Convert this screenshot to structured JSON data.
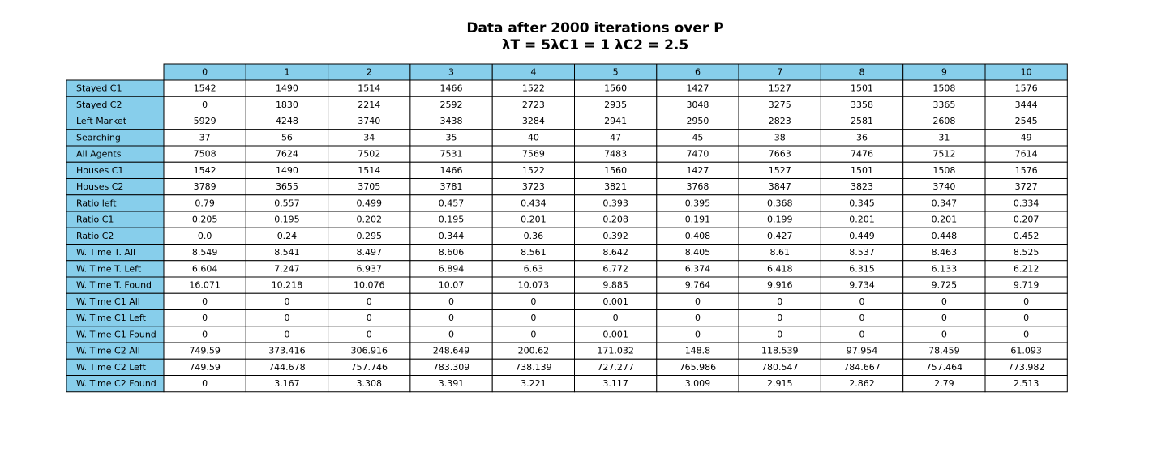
{
  "chart_data": {
    "type": "table",
    "title_line1": "Data after 2000 iterations over P",
    "title_line2": "λT = 5λC1 = 1 λC2 = 2.5",
    "header_color": "#87CEEB",
    "columns": [
      "0",
      "1",
      "2",
      "3",
      "4",
      "5",
      "6",
      "7",
      "8",
      "9",
      "10"
    ],
    "rows": [
      {
        "label": "Stayed C1",
        "values": [
          "1542",
          "1490",
          "1514",
          "1466",
          "1522",
          "1560",
          "1427",
          "1527",
          "1501",
          "1508",
          "1576"
        ]
      },
      {
        "label": "Stayed C2",
        "values": [
          "0",
          "1830",
          "2214",
          "2592",
          "2723",
          "2935",
          "3048",
          "3275",
          "3358",
          "3365",
          "3444"
        ]
      },
      {
        "label": "Left Market",
        "values": [
          "5929",
          "4248",
          "3740",
          "3438",
          "3284",
          "2941",
          "2950",
          "2823",
          "2581",
          "2608",
          "2545"
        ]
      },
      {
        "label": "Searching",
        "values": [
          "37",
          "56",
          "34",
          "35",
          "40",
          "47",
          "45",
          "38",
          "36",
          "31",
          "49"
        ]
      },
      {
        "label": "All Agents",
        "values": [
          "7508",
          "7624",
          "7502",
          "7531",
          "7569",
          "7483",
          "7470",
          "7663",
          "7476",
          "7512",
          "7614"
        ]
      },
      {
        "label": "Houses C1",
        "values": [
          "1542",
          "1490",
          "1514",
          "1466",
          "1522",
          "1560",
          "1427",
          "1527",
          "1501",
          "1508",
          "1576"
        ]
      },
      {
        "label": "Houses C2",
        "values": [
          "3789",
          "3655",
          "3705",
          "3781",
          "3723",
          "3821",
          "3768",
          "3847",
          "3823",
          "3740",
          "3727"
        ]
      },
      {
        "label": "Ratio left",
        "values": [
          "0.79",
          "0.557",
          "0.499",
          "0.457",
          "0.434",
          "0.393",
          "0.395",
          "0.368",
          "0.345",
          "0.347",
          "0.334"
        ]
      },
      {
        "label": "Ratio C1",
        "values": [
          "0.205",
          "0.195",
          "0.202",
          "0.195",
          "0.201",
          "0.208",
          "0.191",
          "0.199",
          "0.201",
          "0.201",
          "0.207"
        ]
      },
      {
        "label": "Ratio C2",
        "values": [
          "0.0",
          "0.24",
          "0.295",
          "0.344",
          "0.36",
          "0.392",
          "0.408",
          "0.427",
          "0.449",
          "0.448",
          "0.452"
        ]
      },
      {
        "label": "W. Time T. All",
        "values": [
          "8.549",
          "8.541",
          "8.497",
          "8.606",
          "8.561",
          "8.642",
          "8.405",
          "8.61",
          "8.537",
          "8.463",
          "8.525"
        ]
      },
      {
        "label": "W. Time T. Left",
        "values": [
          "6.604",
          "7.247",
          "6.937",
          "6.894",
          "6.63",
          "6.772",
          "6.374",
          "6.418",
          "6.315",
          "6.133",
          "6.212"
        ]
      },
      {
        "label": "W. Time T. Found",
        "values": [
          "16.071",
          "10.218",
          "10.076",
          "10.07",
          "10.073",
          "9.885",
          "9.764",
          "9.916",
          "9.734",
          "9.725",
          "9.719"
        ]
      },
      {
        "label": "W. Time C1 All",
        "values": [
          "0",
          "0",
          "0",
          "0",
          "0",
          "0.001",
          "0",
          "0",
          "0",
          "0",
          "0"
        ]
      },
      {
        "label": "W. Time C1 Left",
        "values": [
          "0",
          "0",
          "0",
          "0",
          "0",
          "0",
          "0",
          "0",
          "0",
          "0",
          "0"
        ]
      },
      {
        "label": "W. Time C1 Found",
        "values": [
          "0",
          "0",
          "0",
          "0",
          "0",
          "0.001",
          "0",
          "0",
          "0",
          "0",
          "0"
        ]
      },
      {
        "label": "W. Time C2 All",
        "values": [
          "749.59",
          "373.416",
          "306.916",
          "248.649",
          "200.62",
          "171.032",
          "148.8",
          "118.539",
          "97.954",
          "78.459",
          "61.093"
        ]
      },
      {
        "label": "W. Time C2 Left",
        "values": [
          "749.59",
          "744.678",
          "757.746",
          "783.309",
          "738.139",
          "727.277",
          "765.986",
          "780.547",
          "784.667",
          "757.464",
          "773.982"
        ]
      },
      {
        "label": "W. Time C2 Found",
        "values": [
          "0",
          "3.167",
          "3.308",
          "3.391",
          "3.221",
          "3.117",
          "3.009",
          "2.915",
          "2.862",
          "2.79",
          "2.513"
        ]
      }
    ]
  }
}
